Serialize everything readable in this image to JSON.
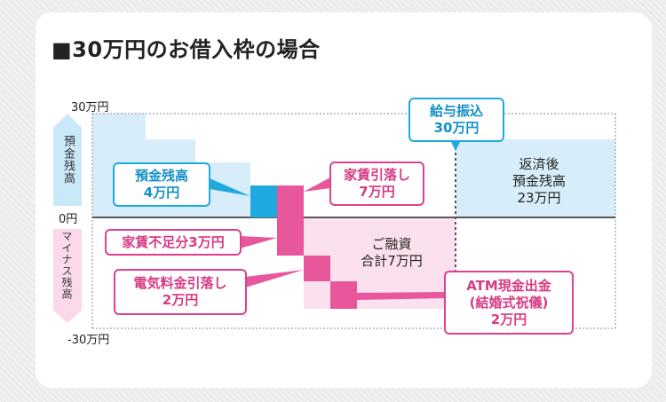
{
  "title": "■30万円のお借入枠の場合",
  "axis": {
    "top": "30万円",
    "zero": "0円",
    "bottom": "-30万円",
    "upper_side": "預金残高",
    "lower_side": "マイナス残高"
  },
  "callouts": {
    "deposit": [
      "預金残高",
      "4万円"
    ],
    "rent": [
      "家賃引落し",
      "7万円"
    ],
    "shortfall": "家賃不足分3万円",
    "electricity": [
      "電気料金引落し",
      "2万円"
    ],
    "salary": [
      "給与振込",
      "30万円"
    ],
    "atm": [
      "ATM現金出金",
      "(結婚式祝儀)",
      "2万円"
    ]
  },
  "annotations": {
    "loan": [
      "ご融資",
      "合計7万円"
    ],
    "after": [
      "返済後",
      "預金残高",
      "23万円"
    ]
  },
  "colors": {
    "light_blue": "#d7eefa",
    "blue": "#1ea9e0",
    "light_pink": "#fbe0ee",
    "pink": "#e8579b"
  }
}
